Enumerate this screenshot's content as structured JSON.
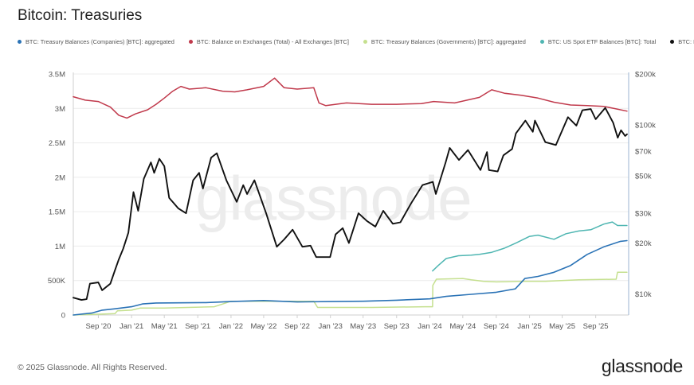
{
  "title": "Bitcoin: Treasuries",
  "footer": "© 2025 Glassnode. All Rights Reserved.",
  "brand": "glassnode",
  "watermark": "glassnode",
  "chart_data": {
    "type": "line",
    "title": "Bitcoin: Treasuries",
    "legend_position": "top",
    "grid": true,
    "x_ticks": [
      "Sep '20",
      "Jan '21",
      "May '21",
      "Sep '21",
      "Jan '22",
      "May '22",
      "Sep '22",
      "Jan '23",
      "May '23",
      "Sep '23",
      "Jan '24",
      "May '24",
      "Sep '24",
      "Jan '25",
      "May '25",
      "Sep '25"
    ],
    "y_left": {
      "ticks": [
        "0",
        "500K",
        "1M",
        "1.5M",
        "2M",
        "2.5M",
        "3M",
        "3.5M"
      ],
      "range": [
        0,
        3500000
      ]
    },
    "y_right": {
      "scale": "log",
      "ticks": [
        "$10k",
        "$20k",
        "$30k",
        "$50k",
        "$70k",
        "$100k",
        "$200k"
      ],
      "tick_values": [
        10000,
        20000,
        30000,
        50000,
        70000,
        100000,
        200000
      ],
      "range": [
        7500,
        200000
      ]
    },
    "series": [
      {
        "name": "BTC: Treasury Balances (Companies) [BTC]: aggregated",
        "color": "#2b73b6",
        "axis": "left",
        "points": [
          [
            "2020-06-01",
            0
          ],
          [
            "2020-08-10",
            30000
          ],
          [
            "2020-09-15",
            70000
          ],
          [
            "2020-11-01",
            90000
          ],
          [
            "2021-01-01",
            120000
          ],
          [
            "2021-02-10",
            160000
          ],
          [
            "2021-04-01",
            175000
          ],
          [
            "2021-10-01",
            180000
          ],
          [
            "2022-01-01",
            195000
          ],
          [
            "2022-05-01",
            210000
          ],
          [
            "2022-09-01",
            190000
          ],
          [
            "2023-01-01",
            195000
          ],
          [
            "2023-05-01",
            200000
          ],
          [
            "2023-09-01",
            215000
          ],
          [
            "2024-01-01",
            235000
          ],
          [
            "2024-03-01",
            270000
          ],
          [
            "2024-06-01",
            300000
          ],
          [
            "2024-09-01",
            330000
          ],
          [
            "2024-11-10",
            380000
          ],
          [
            "2024-12-15",
            530000
          ],
          [
            "2025-02-01",
            560000
          ],
          [
            "2025-04-01",
            620000
          ],
          [
            "2025-06-01",
            720000
          ],
          [
            "2025-08-01",
            880000
          ],
          [
            "2025-10-01",
            990000
          ],
          [
            "2025-12-01",
            1070000
          ],
          [
            "2025-12-25",
            1080000
          ]
        ]
      },
      {
        "name": "BTC: Balance on Exchanges (Total) - All Exchanges [BTC]",
        "color": "#c0394b",
        "axis": "left",
        "points": [
          [
            "2020-06-01",
            3170000
          ],
          [
            "2020-07-15",
            3120000
          ],
          [
            "2020-09-01",
            3100000
          ],
          [
            "2020-10-15",
            3020000
          ],
          [
            "2020-11-15",
            2900000
          ],
          [
            "2020-12-15",
            2860000
          ],
          [
            "2021-01-15",
            2920000
          ],
          [
            "2021-03-01",
            2980000
          ],
          [
            "2021-04-01",
            3060000
          ],
          [
            "2021-05-01",
            3150000
          ],
          [
            "2021-06-01",
            3250000
          ],
          [
            "2021-07-01",
            3320000
          ],
          [
            "2021-08-01",
            3280000
          ],
          [
            "2021-10-01",
            3300000
          ],
          [
            "2021-12-01",
            3250000
          ],
          [
            "2022-01-15",
            3240000
          ],
          [
            "2022-03-01",
            3270000
          ],
          [
            "2022-05-01",
            3320000
          ],
          [
            "2022-06-10",
            3440000
          ],
          [
            "2022-07-15",
            3300000
          ],
          [
            "2022-09-01",
            3280000
          ],
          [
            "2022-11-01",
            3300000
          ],
          [
            "2022-11-20",
            3080000
          ],
          [
            "2022-12-15",
            3040000
          ],
          [
            "2023-03-01",
            3080000
          ],
          [
            "2023-06-01",
            3060000
          ],
          [
            "2023-09-01",
            3060000
          ],
          [
            "2023-12-01",
            3070000
          ],
          [
            "2024-01-15",
            3100000
          ],
          [
            "2024-04-01",
            3080000
          ],
          [
            "2024-07-01",
            3160000
          ],
          [
            "2024-08-15",
            3270000
          ],
          [
            "2024-10-01",
            3220000
          ],
          [
            "2024-12-01",
            3190000
          ],
          [
            "2025-02-01",
            3150000
          ],
          [
            "2025-04-01",
            3090000
          ],
          [
            "2025-06-01",
            3050000
          ],
          [
            "2025-08-01",
            3040000
          ],
          [
            "2025-10-01",
            3030000
          ],
          [
            "2025-12-25",
            2960000
          ]
        ]
      },
      {
        "name": "BTC: Treasury Balances (Governments) [BTC]: aggregated",
        "color": "#c5e08f",
        "axis": "left",
        "points": [
          [
            "2020-06-01",
            0
          ],
          [
            "2020-11-01",
            20000
          ],
          [
            "2020-11-10",
            60000
          ],
          [
            "2021-01-01",
            70000
          ],
          [
            "2021-02-01",
            100000
          ],
          [
            "2021-05-01",
            100000
          ],
          [
            "2021-11-01",
            120000
          ],
          [
            "2022-01-01",
            200000
          ],
          [
            "2022-11-01",
            200000
          ],
          [
            "2022-11-15",
            110000
          ],
          [
            "2023-06-01",
            110000
          ],
          [
            "2023-12-15",
            120000
          ],
          [
            "2024-01-11",
            120000
          ],
          [
            "2024-01-12",
            430000
          ],
          [
            "2024-01-25",
            520000
          ],
          [
            "2024-05-01",
            530000
          ],
          [
            "2024-06-01",
            510000
          ],
          [
            "2024-07-15",
            490000
          ],
          [
            "2024-09-01",
            480000
          ],
          [
            "2024-12-01",
            490000
          ],
          [
            "2025-03-01",
            490000
          ],
          [
            "2025-07-01",
            510000
          ],
          [
            "2025-11-15",
            520000
          ],
          [
            "2025-11-20",
            620000
          ],
          [
            "2025-12-25",
            620000
          ]
        ]
      },
      {
        "name": "BTC: US Spot ETF Balances [BTC]: Total",
        "color": "#4fb6b2",
        "axis": "left",
        "points": [
          [
            "2024-01-11",
            640000
          ],
          [
            "2024-02-01",
            720000
          ],
          [
            "2024-03-01",
            820000
          ],
          [
            "2024-04-15",
            860000
          ],
          [
            "2024-06-01",
            870000
          ],
          [
            "2024-07-01",
            880000
          ],
          [
            "2024-08-15",
            910000
          ],
          [
            "2024-10-01",
            970000
          ],
          [
            "2024-11-15",
            1050000
          ],
          [
            "2024-12-31",
            1140000
          ],
          [
            "2025-02-01",
            1160000
          ],
          [
            "2025-04-01",
            1100000
          ],
          [
            "2025-05-15",
            1180000
          ],
          [
            "2025-07-01",
            1220000
          ],
          [
            "2025-08-15",
            1240000
          ],
          [
            "2025-10-01",
            1320000
          ],
          [
            "2025-11-01",
            1350000
          ],
          [
            "2025-11-20",
            1300000
          ],
          [
            "2025-12-25",
            1300000
          ]
        ]
      },
      {
        "name": "BTC: Price [USD]",
        "color": "#111111",
        "axis": "right",
        "points": [
          [
            "2020-06-01",
            9500
          ],
          [
            "2020-07-01",
            9200
          ],
          [
            "2020-07-20",
            9300
          ],
          [
            "2020-08-01",
            11500
          ],
          [
            "2020-09-01",
            11700
          ],
          [
            "2020-09-15",
            10500
          ],
          [
            "2020-10-15",
            11500
          ],
          [
            "2020-11-01",
            13800
          ],
          [
            "2020-11-15",
            16000
          ],
          [
            "2020-12-01",
            18500
          ],
          [
            "2020-12-20",
            23000
          ],
          [
            "2021-01-08",
            40000
          ],
          [
            "2021-01-25",
            31000
          ],
          [
            "2021-02-15",
            48000
          ],
          [
            "2021-03-13",
            60000
          ],
          [
            "2021-03-25",
            52000
          ],
          [
            "2021-04-13",
            63000
          ],
          [
            "2021-05-01",
            57000
          ],
          [
            "2021-05-19",
            37000
          ],
          [
            "2021-06-22",
            32000
          ],
          [
            "2021-07-20",
            30000
          ],
          [
            "2021-08-15",
            47000
          ],
          [
            "2021-09-06",
            52000
          ],
          [
            "2021-09-20",
            42000
          ],
          [
            "2021-10-20",
            64000
          ],
          [
            "2021-11-10",
            68000
          ],
          [
            "2021-12-15",
            47000
          ],
          [
            "2022-01-22",
            35000
          ],
          [
            "2022-02-15",
            44000
          ],
          [
            "2022-03-01",
            39000
          ],
          [
            "2022-03-28",
            47000
          ],
          [
            "2022-05-10",
            30000
          ],
          [
            "2022-06-18",
            19000
          ],
          [
            "2022-07-15",
            21000
          ],
          [
            "2022-08-15",
            24000
          ],
          [
            "2022-09-20",
            19000
          ],
          [
            "2022-10-20",
            19300
          ],
          [
            "2022-11-10",
            16500
          ],
          [
            "2022-12-31",
            16500
          ],
          [
            "2023-01-20",
            22500
          ],
          [
            "2023-02-15",
            24500
          ],
          [
            "2023-03-10",
            20000
          ],
          [
            "2023-04-14",
            30000
          ],
          [
            "2023-05-15",
            27000
          ],
          [
            "2023-06-15",
            25000
          ],
          [
            "2023-07-14",
            31000
          ],
          [
            "2023-08-18",
            26000
          ],
          [
            "2023-09-15",
            26500
          ],
          [
            "2023-10-25",
            34500
          ],
          [
            "2023-12-05",
            44000
          ],
          [
            "2024-01-12",
            46000
          ],
          [
            "2024-01-23",
            39000
          ],
          [
            "2024-02-28",
            60000
          ],
          [
            "2024-03-14",
            73000
          ],
          [
            "2024-04-17",
            62000
          ],
          [
            "2024-05-20",
            71000
          ],
          [
            "2024-07-05",
            54000
          ],
          [
            "2024-07-29",
            69000
          ],
          [
            "2024-08-05",
            54000
          ],
          [
            "2024-09-06",
            53000
          ],
          [
            "2024-09-27",
            66000
          ],
          [
            "2024-10-29",
            72000
          ],
          [
            "2024-11-12",
            89000
          ],
          [
            "2024-12-17",
            106000
          ],
          [
            "2025-01-13",
            91000
          ],
          [
            "2025-01-21",
            106000
          ],
          [
            "2025-02-28",
            79000
          ],
          [
            "2025-04-08",
            76000
          ],
          [
            "2025-05-22",
            111000
          ],
          [
            "2025-06-22",
            99000
          ],
          [
            "2025-07-14",
            122000
          ],
          [
            "2025-08-14",
            124000
          ],
          [
            "2025-09-01",
            108000
          ],
          [
            "2025-10-06",
            126000
          ],
          [
            "2025-11-04",
            103000
          ],
          [
            "2025-11-21",
            84000
          ],
          [
            "2025-12-03",
            93000
          ],
          [
            "2025-12-18",
            86000
          ],
          [
            "2025-12-25",
            88000
          ]
        ]
      }
    ]
  }
}
